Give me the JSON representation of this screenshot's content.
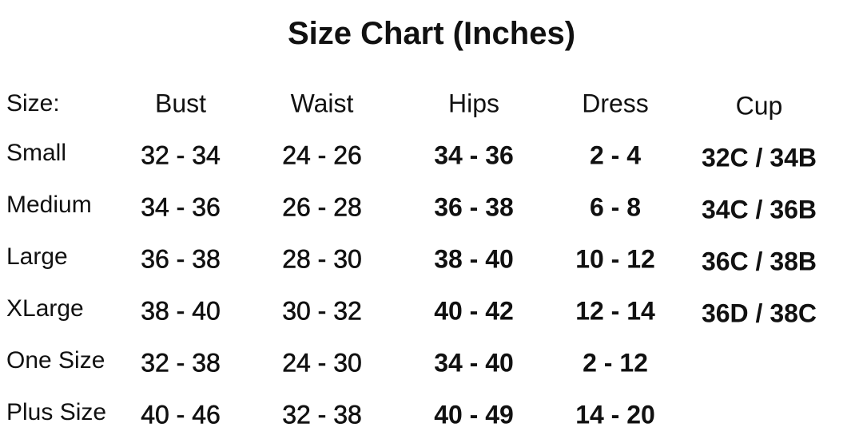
{
  "title": "Size Chart (Inches)",
  "headers": {
    "size": "Size:",
    "bust": "Bust",
    "waist": "Waist",
    "hips": "Hips",
    "dress": "Dress",
    "cup": "Cup"
  },
  "rows": [
    {
      "size": "Small",
      "bust": "32 - 34",
      "waist": "24 - 26",
      "hips": "34 - 36",
      "dress": "2 - 4",
      "cup": "32C / 34B"
    },
    {
      "size": "Medium",
      "bust": "34 - 36",
      "waist": "26 - 28",
      "hips": "36 - 38",
      "dress": "6 - 8",
      "cup": "34C / 36B"
    },
    {
      "size": "Large",
      "bust": "36 - 38",
      "waist": "28 - 30",
      "hips": "38 - 40",
      "dress": "10 - 12",
      "cup": "36C / 38B"
    },
    {
      "size": "XLarge",
      "bust": "38 - 40",
      "waist": "30 - 32",
      "hips": "40 - 42",
      "dress": "12 - 14",
      "cup": "36D / 38C"
    },
    {
      "size": "One Size",
      "bust": "32 - 38",
      "waist": "24 - 30",
      "hips": "34 - 40",
      "dress": "2 - 12",
      "cup": ""
    },
    {
      "size": "Plus Size",
      "bust": "40 - 46",
      "waist": "32 - 38",
      "hips": "40 - 49",
      "dress": "14 - 20",
      "cup": ""
    }
  ]
}
